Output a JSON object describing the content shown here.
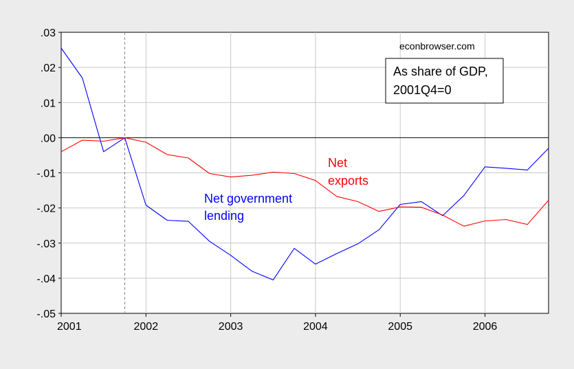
{
  "chart_data": {
    "type": "line",
    "title": "",
    "xlabel": "",
    "ylabel": "",
    "x_ticks": [
      "2001",
      "2002",
      "2003",
      "2004",
      "2005",
      "2006"
    ],
    "y_ticks": [
      ".03",
      ".02",
      ".01",
      ".00",
      "-.01",
      "-.02",
      "-.03",
      "-.04",
      "-.05"
    ],
    "ylim": [
      -0.05,
      0.03
    ],
    "xlim": [
      "2001Q1",
      "2006Q4"
    ],
    "grid": true,
    "reference_line": {
      "date": "2001Q4",
      "style": "dashed",
      "color": "#888888"
    },
    "zero_line": 0,
    "x": [
      "2001Q1",
      "2001Q2",
      "2001Q3",
      "2001Q4",
      "2002Q1",
      "2002Q2",
      "2002Q3",
      "2002Q4",
      "2003Q1",
      "2003Q2",
      "2003Q3",
      "2003Q4",
      "2004Q1",
      "2004Q2",
      "2004Q3",
      "2004Q4",
      "2005Q1",
      "2005Q2",
      "2005Q3",
      "2005Q4",
      "2006Q1",
      "2006Q2",
      "2006Q3",
      "2006Q4"
    ],
    "series": [
      {
        "name": "Net government lending",
        "color": "#0000ff",
        "values": [
          0.0255,
          0.017,
          -0.004,
          0.0,
          -0.0192,
          -0.0235,
          -0.0238,
          -0.0295,
          -0.0335,
          -0.038,
          -0.0405,
          -0.0315,
          -0.036,
          -0.033,
          -0.0302,
          -0.0262,
          -0.019,
          -0.0182,
          -0.0222,
          -0.0165,
          -0.0083,
          -0.0087,
          -0.0092,
          -0.003
        ]
      },
      {
        "name": "Net exports",
        "color": "#ff0000",
        "values": [
          -0.004,
          -0.0007,
          -0.001,
          0.0,
          -0.0013,
          -0.0048,
          -0.0058,
          -0.0102,
          -0.0112,
          -0.0107,
          -0.0098,
          -0.0102,
          -0.0122,
          -0.0167,
          -0.0182,
          -0.021,
          -0.0197,
          -0.0198,
          -0.022,
          -0.0252,
          -0.0237,
          -0.0233,
          -0.0247,
          -0.0178
        ]
      }
    ],
    "annotations": {
      "source": "econbrowser.com",
      "box_line1": "As share of GDP,",
      "box_line2": "2001Q4=0",
      "gov_label_line1": "Net government",
      "gov_label_line2": "lending",
      "exports_label_line1": "Net",
      "exports_label_line2": "exports"
    }
  }
}
